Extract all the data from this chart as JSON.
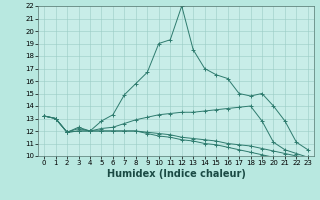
{
  "xlabel": "Humidex (Indice chaleur)",
  "bg_color": "#b8e8e0",
  "plot_bg": "#c8ede8",
  "grid_color": "#9accc5",
  "line_color": "#2e7b6e",
  "x": [
    0,
    1,
    2,
    3,
    4,
    5,
    6,
    7,
    8,
    9,
    10,
    11,
    12,
    13,
    14,
    15,
    16,
    17,
    18,
    19,
    20,
    21,
    22,
    23
  ],
  "line1": [
    13.2,
    13.0,
    11.9,
    12.3,
    12.0,
    12.8,
    13.3,
    14.9,
    15.8,
    16.7,
    19.0,
    19.3,
    22.0,
    18.5,
    17.0,
    16.5,
    16.2,
    15.0,
    14.8,
    15.0,
    14.0,
    12.8,
    11.1,
    10.5
  ],
  "line2": [
    13.2,
    13.0,
    11.9,
    12.2,
    12.0,
    12.2,
    12.3,
    12.6,
    12.9,
    13.1,
    13.3,
    13.4,
    13.5,
    13.5,
    13.6,
    13.7,
    13.8,
    13.9,
    14.0,
    12.8,
    11.1,
    10.5,
    10.2,
    9.9
  ],
  "line3": [
    13.2,
    13.0,
    11.9,
    12.0,
    12.0,
    12.0,
    12.0,
    12.0,
    12.0,
    11.9,
    11.8,
    11.7,
    11.5,
    11.4,
    11.3,
    11.2,
    11.0,
    10.9,
    10.8,
    10.6,
    10.4,
    10.2,
    10.0,
    9.9
  ],
  "line4": [
    13.2,
    13.0,
    11.9,
    12.0,
    12.0,
    12.0,
    12.0,
    12.0,
    12.0,
    11.8,
    11.6,
    11.5,
    11.3,
    11.2,
    11.0,
    10.9,
    10.7,
    10.5,
    10.3,
    10.1,
    9.9,
    9.8,
    9.7,
    9.5
  ],
  "ylim": [
    10,
    22
  ],
  "xlim": [
    -0.5,
    23.5
  ],
  "yticks": [
    10,
    11,
    12,
    13,
    14,
    15,
    16,
    17,
    18,
    19,
    20,
    21,
    22
  ],
  "xticks": [
    0,
    1,
    2,
    3,
    4,
    5,
    6,
    7,
    8,
    9,
    10,
    11,
    12,
    13,
    14,
    15,
    16,
    17,
    18,
    19,
    20,
    21,
    22,
    23
  ],
  "xlabel_fontsize": 7,
  "tick_fontsize": 5
}
